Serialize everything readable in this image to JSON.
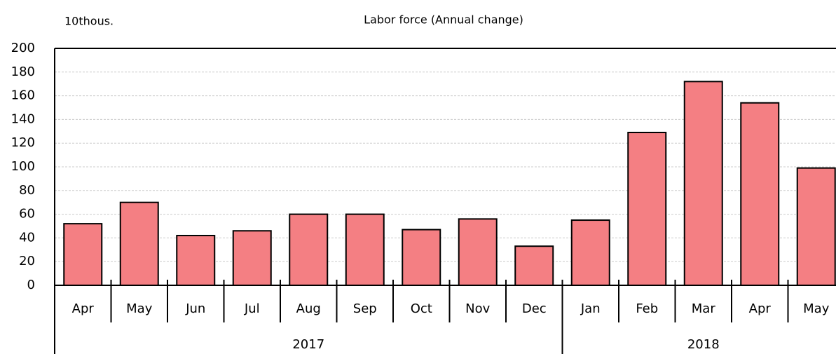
{
  "chart_data": {
    "type": "bar",
    "title": "Labor force (Annual change)",
    "y_label": "10thous.",
    "categories": [
      "Apr",
      "May",
      "Jun",
      "Jul",
      "Aug",
      "Sep",
      "Oct",
      "Nov",
      "Dec",
      "Jan",
      "Feb",
      "Mar",
      "Apr",
      "May"
    ],
    "category_groups": [
      {
        "label": "2017",
        "size": 9
      },
      {
        "label": "2018",
        "size": 5
      }
    ],
    "values": [
      52,
      70,
      42,
      46,
      60,
      60,
      47,
      56,
      33,
      55,
      129,
      172,
      154,
      99
    ],
    "color": "#f47f83",
    "ylim": [
      0,
      200
    ],
    "yticks": [
      0,
      20,
      40,
      60,
      80,
      100,
      120,
      140,
      160,
      180,
      200
    ],
    "grid": true
  }
}
